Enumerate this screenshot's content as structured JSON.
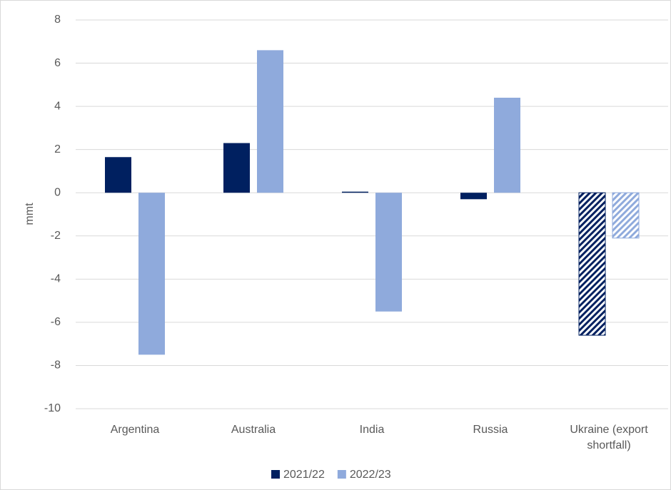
{
  "chart_data": {
    "type": "bar",
    "categories": [
      "Argentina",
      "Australia",
      "India",
      "Russia",
      "Ukraine (export shortfall)"
    ],
    "series": [
      {
        "name": "2021/22",
        "color": "#002060",
        "values": [
          1.65,
          2.3,
          0.05,
          -0.3,
          -6.6
        ]
      },
      {
        "name": "2022/23",
        "color": "#8faadc",
        "values": [
          -7.5,
          6.6,
          -5.5,
          4.4,
          -2.1
        ]
      }
    ],
    "hatch": [
      false,
      false,
      false,
      false,
      true
    ],
    "y_label": "mmt",
    "ylim": [
      -10,
      8
    ],
    "yticks": [
      -10,
      -8,
      -6,
      -4,
      -2,
      0,
      2,
      4,
      6,
      8
    ],
    "grid": true,
    "legend": "bottom"
  }
}
